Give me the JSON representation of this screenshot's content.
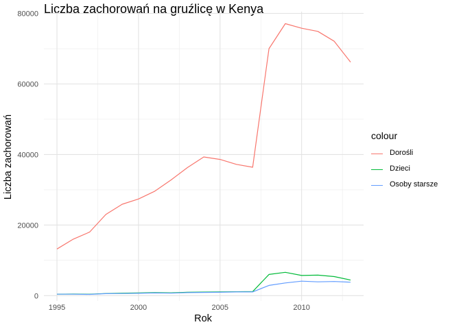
{
  "chart_data": {
    "type": "line",
    "title": "Liczba zachorowań na gruźlicę w Kenya",
    "xlabel": "Rok",
    "ylabel": "Liczba zachorowań",
    "xlim": [
      1994.2,
      2013.8
    ],
    "ylim": [
      -1500,
      80500
    ],
    "x_ticks": [
      1995,
      2000,
      2005,
      2010
    ],
    "x_tick_labels": [
      "1995",
      "2000",
      "2005",
      "2010"
    ],
    "y_ticks": [
      0,
      20000,
      40000,
      60000,
      80000
    ],
    "y_tick_labels": [
      "0",
      "20000",
      "40000",
      "60000",
      "80000"
    ],
    "grid": true,
    "legend_title": "colour",
    "legend_position": "right",
    "x": [
      1995,
      1996,
      1997,
      1998,
      1999,
      2000,
      2001,
      2002,
      2003,
      2004,
      2005,
      2006,
      2007,
      2008,
      2009,
      2010,
      2011,
      2012,
      2013
    ],
    "series": [
      {
        "name": "Dorośli",
        "color": "#F8766D",
        "values": [
          13200,
          16000,
          18000,
          23000,
          25900,
          27400,
          29600,
          32800,
          36300,
          39300,
          38600,
          37200,
          36400,
          70000,
          77100,
          75800,
          74900,
          72100,
          66200
        ]
      },
      {
        "name": "Dzieci",
        "color": "#00BA38",
        "values": [
          400,
          450,
          400,
          600,
          700,
          750,
          850,
          800,
          950,
          1000,
          1050,
          1100,
          1150,
          6000,
          6600,
          5700,
          5800,
          5400,
          4400
        ]
      },
      {
        "name": "Osoby starsze",
        "color": "#619CFF",
        "values": [
          400,
          400,
          350,
          550,
          600,
          650,
          750,
          700,
          850,
          900,
          950,
          1050,
          1050,
          2900,
          3600,
          4100,
          3900,
          4000,
          3800
        ]
      }
    ]
  }
}
